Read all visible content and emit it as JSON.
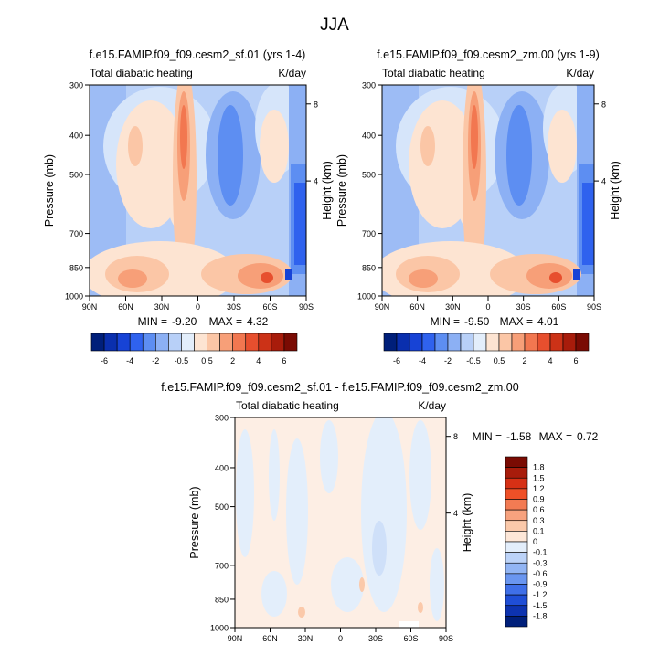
{
  "figure": {
    "title": "JJA"
  },
  "panels": [
    {
      "title": "f.e15.FAMIP.f09_f09.cesm2_sf.01 (yrs 1-4)",
      "left_label": "Total diabatic heating",
      "right_label": "K/day",
      "stats": {
        "min_label": "MIN =",
        "min": "-9.20",
        "max_label": "MAX =",
        "max": "4.32"
      }
    },
    {
      "title": "f.e15.FAMIP.f09_f09.cesm2_zm.00 (yrs 1-9)",
      "left_label": "Total diabatic heating",
      "right_label": "K/day",
      "stats": {
        "min_label": "MIN =",
        "min": "-9.50",
        "max_label": "MAX =",
        "max": "4.01"
      }
    },
    {
      "title": "f.e15.FAMIP.f09_f09.cesm2_sf.01 - f.e15.FAMIP.f09_f09.cesm2_zm.00",
      "left_label": "Total diabatic heating",
      "right_label": "K/day",
      "stats": {
        "min_label": "MIN =",
        "min": "-1.58",
        "max_label": "MAX =",
        "max": "0.72"
      }
    }
  ],
  "axes": {
    "ylabel": "Pressure (mb)",
    "ylabel_right": "Height (km)",
    "y_ticks": [
      "300",
      "400",
      "500",
      "700",
      "850",
      "1000"
    ],
    "x_ticks": [
      "90N",
      "60N",
      "30N",
      "0",
      "30S",
      "60S",
      "90S"
    ],
    "height_ticks": [
      "8",
      "4"
    ]
  },
  "colorbars": {
    "main": {
      "labels": [
        "-6",
        "-4",
        "-2",
        "-0.5",
        "0.5",
        "2",
        "4",
        "6"
      ],
      "colors": [
        "#001f7a",
        "#0a2fae",
        "#1743d6",
        "#2f62ee",
        "#5d8ef2",
        "#8cb0f4",
        "#b8d0f8",
        "#e3eefb",
        "#fde4d2",
        "#fbc6a6",
        "#f79f78",
        "#f27750",
        "#e74f2e",
        "#cc3217",
        "#a81c0b",
        "#7a0b03"
      ]
    },
    "diff": {
      "labels": [
        "1.8",
        "1.5",
        "1.2",
        "0.9",
        "0.6",
        "0.3",
        "0.1",
        "0",
        "-0.1",
        "-0.3",
        "-0.6",
        "-0.9",
        "-1.2",
        "-1.5",
        "-1.8"
      ],
      "colors": [
        "#7a0b03",
        "#a81c0b",
        "#d63015",
        "#ef5027",
        "#f37b53",
        "#f7a27e",
        "#fbc9aa",
        "#fde7d8",
        "#e3eefb",
        "#bcd3f8",
        "#92b5f4",
        "#6a96f0",
        "#3f6fe8",
        "#1f4ed6",
        "#0d33b0",
        "#001f7a"
      ]
    }
  },
  "chart_data": [
    {
      "type": "heatmap",
      "title": "f.e15.FAMIP.f09_f09.cesm2_sf.01 (yrs 1-4)",
      "x": [
        "90N",
        "60N",
        "30N",
        "0",
        "30S",
        "60S",
        "90S"
      ],
      "y": [
        300,
        400,
        500,
        700,
        850,
        1000
      ],
      "ylabel": "Pressure (mb)",
      "min": -9.2,
      "max": 4.32,
      "units": "K/day"
    },
    {
      "type": "heatmap",
      "title": "f.e15.FAMIP.f09_f09.cesm2_zm.00 (yrs 1-9)",
      "x": [
        "90N",
        "60N",
        "30N",
        "0",
        "30S",
        "60S",
        "90S"
      ],
      "y": [
        300,
        400,
        500,
        700,
        850,
        1000
      ],
      "ylabel": "Pressure (mb)",
      "min": -9.5,
      "max": 4.01,
      "units": "K/day"
    },
    {
      "type": "heatmap",
      "title": "f.e15.FAMIP.f09_f09.cesm2_sf.01 - f.e15.FAMIP.f09_f09.cesm2_zm.00",
      "x": [
        "90N",
        "60N",
        "30N",
        "0",
        "30S",
        "60S",
        "90S"
      ],
      "y": [
        300,
        400,
        500,
        700,
        850,
        1000
      ],
      "ylabel": "Pressure (mb)",
      "min": -1.58,
      "max": 0.72,
      "units": "K/day"
    }
  ]
}
